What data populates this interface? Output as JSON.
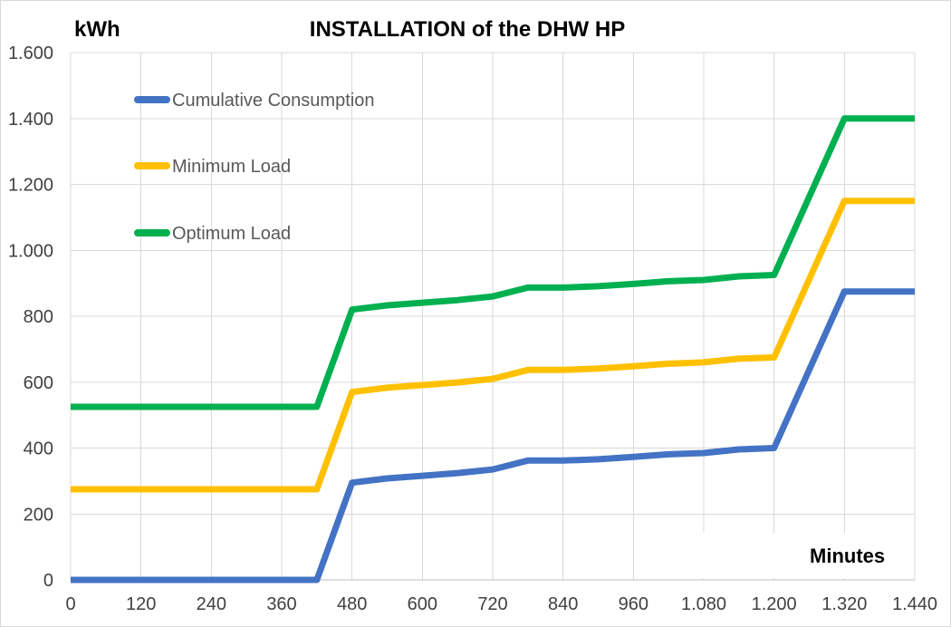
{
  "chart_data": {
    "type": "line",
    "title": "INSTALLATION of the DHW HP",
    "ylabel": "kWh",
    "xlabel": "Minutes",
    "xlim": [
      0,
      1440
    ],
    "ylim": [
      0,
      1600
    ],
    "grid": true,
    "legend_position": "top-left",
    "xticks": [
      0,
      120,
      240,
      360,
      480,
      600,
      720,
      840,
      960,
      1080,
      1200,
      1320,
      1440
    ],
    "xtick_labels": [
      "0",
      "120",
      "240",
      "360",
      "480",
      "600",
      "720",
      "840",
      "960",
      "1.080",
      "1.200",
      "1.320",
      "1.440"
    ],
    "yticks": [
      0,
      200,
      400,
      600,
      800,
      1000,
      1200,
      1400,
      1600
    ],
    "ytick_labels": [
      "0",
      "200",
      "400",
      "600",
      "800",
      "1.000",
      "1.200",
      "1.400",
      "1.600"
    ],
    "x": [
      0,
      420,
      480,
      540,
      600,
      660,
      720,
      780,
      840,
      900,
      960,
      1020,
      1080,
      1140,
      1200,
      1320,
      1440
    ],
    "series": [
      {
        "name": "Cumulative Consumption",
        "color": "#4472C4",
        "values": [
          0,
          0,
          295,
          308,
          316,
          324,
          335,
          362,
          362,
          366,
          373,
          381,
          385,
          396,
          400,
          875,
          875
        ]
      },
      {
        "name": "Minimum Load",
        "color": "#FFC000",
        "values": [
          275,
          275,
          570,
          583,
          591,
          599,
          610,
          637,
          637,
          641,
          648,
          656,
          660,
          671,
          675,
          1150,
          1150
        ]
      },
      {
        "name": "Optimum Load",
        "color": "#00B050",
        "values": [
          525,
          525,
          820,
          833,
          841,
          849,
          860,
          887,
          887,
          891,
          898,
          906,
          910,
          921,
          925,
          1400,
          1400
        ]
      }
    ]
  }
}
